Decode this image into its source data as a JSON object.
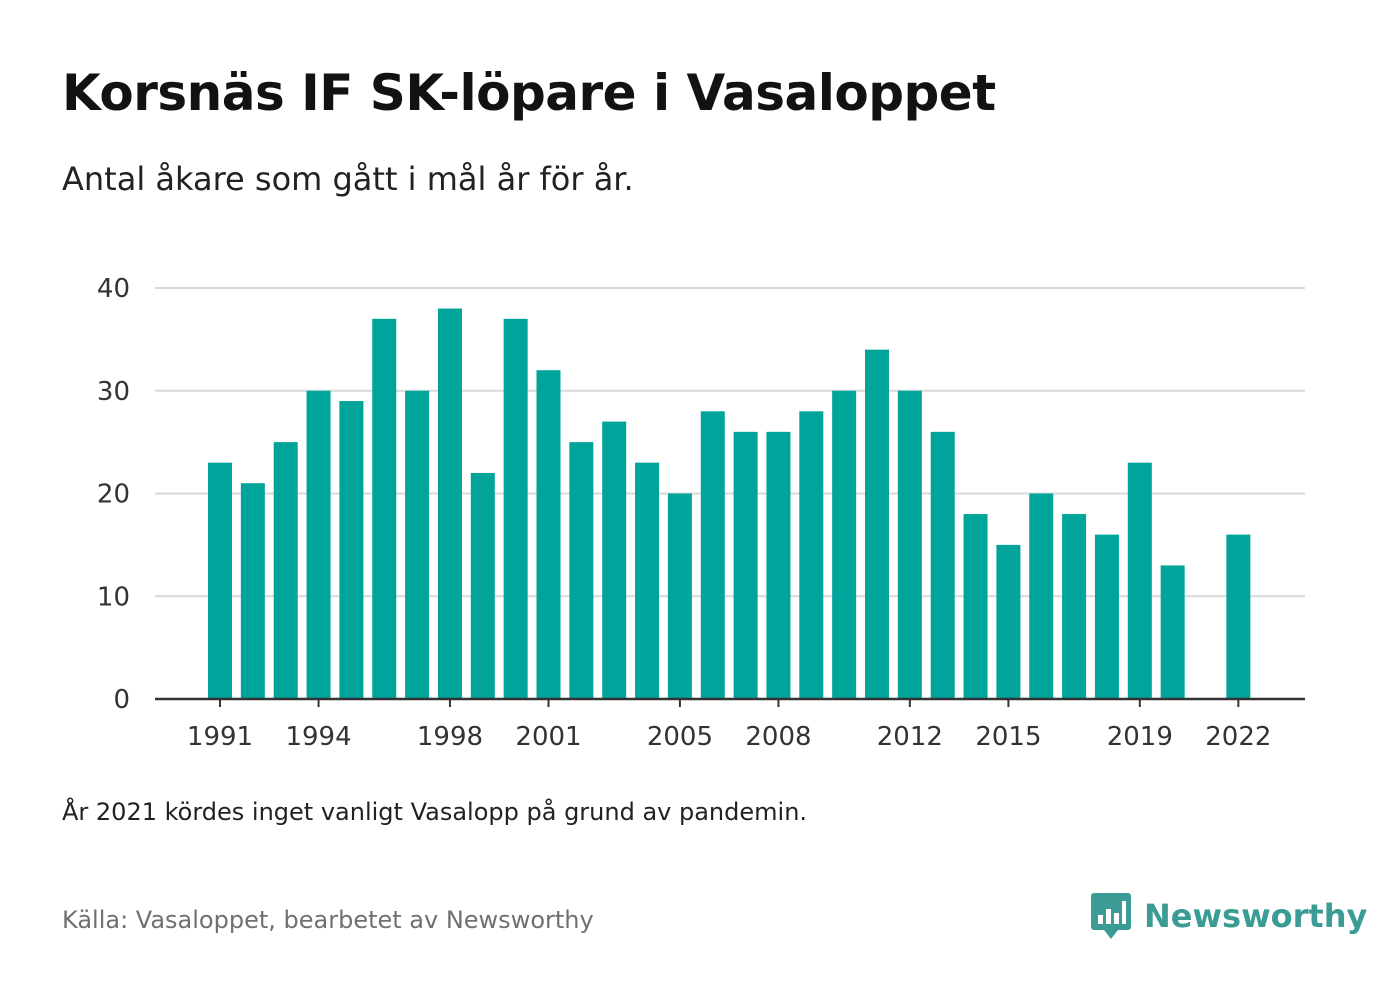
{
  "header": {
    "title": "Korsnäs IF SK-löpare i Vasaloppet",
    "subtitle": "Antal åkare som gått i mål år för år."
  },
  "footer": {
    "note": "År 2021 kördes inget vanligt Vasalopp på grund av pandemin.",
    "source": "Källa: Vasaloppet, bearbetet av Newsworthy",
    "brand": "Newsworthy",
    "brand_icon": "newsworthy-logo-icon"
  },
  "colors": {
    "bar": "#00a49a",
    "grid": "#d9d9d9",
    "axis": "#333333",
    "brand": "#3a9c94"
  },
  "chart_data": {
    "type": "bar",
    "title": "Korsnäs IF SK-löpare i Vasaloppet",
    "subtitle": "Antal åkare som gått i mål år för år.",
    "xlabel": "",
    "ylabel": "",
    "x": [
      1991,
      1992,
      1993,
      1994,
      1995,
      1996,
      1997,
      1998,
      1999,
      2000,
      2001,
      2002,
      2003,
      2004,
      2005,
      2006,
      2007,
      2008,
      2009,
      2010,
      2011,
      2012,
      2013,
      2014,
      2015,
      2016,
      2017,
      2018,
      2019,
      2020,
      2021,
      2022
    ],
    "values": [
      23,
      21,
      25,
      30,
      29,
      37,
      30,
      38,
      22,
      37,
      32,
      25,
      27,
      23,
      20,
      28,
      26,
      26,
      28,
      30,
      34,
      30,
      26,
      18,
      15,
      20,
      18,
      16,
      23,
      13,
      null,
      16
    ],
    "x_tick_labels": [
      1991,
      1994,
      1998,
      2001,
      2005,
      2008,
      2012,
      2015,
      2019,
      2022
    ],
    "y_ticks": [
      0,
      10,
      20,
      30,
      40
    ],
    "ylim": [
      0,
      40
    ],
    "grid": true,
    "legend": "none"
  }
}
